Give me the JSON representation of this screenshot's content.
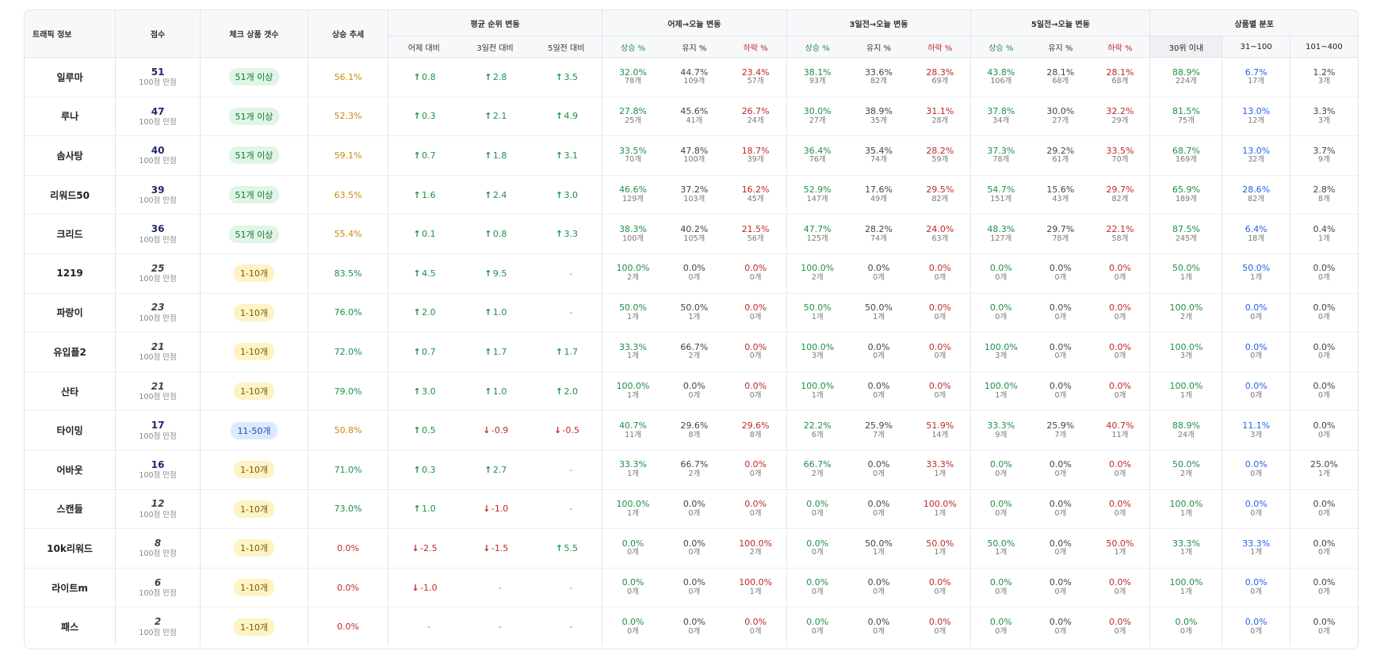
{
  "headers": {
    "traffic": "트래픽 정보",
    "score": "점수",
    "check_count": "체크 상품 갯수",
    "trend": "상승 추세",
    "avg_rank": "평균 순위 변동",
    "yesterday": "어제→오늘 변동",
    "three_day": "3일전→오늘 변동",
    "five_day": "5일전→오늘 변동",
    "distribution": "상품별 분포",
    "vs_yesterday": "어제 대비",
    "vs_3day": "3일전 대비",
    "vs_5day": "5일전 대비",
    "up_pct": "상승 %",
    "keep_pct": "유지 %",
    "down_pct": "하락 %",
    "dist_30": "30위 이내",
    "dist_31_100": "31~100",
    "dist_101_400": "101~400"
  },
  "rows": [
    {
      "name": "일루마",
      "score": "51",
      "score_sub": "100점 만점",
      "score_style": "hi",
      "badge": "51개 이상",
      "badge_style": "green",
      "trend": "56.1%",
      "trend_color": "orange",
      "rank": [
        {
          "arrow": "↑",
          "value": "0.8",
          "dir": "up"
        },
        {
          "arrow": "↑",
          "value": "2.8",
          "dir": "up"
        },
        {
          "arrow": "↑",
          "value": "3.5",
          "dir": "up"
        }
      ],
      "changes": [
        [
          "32.0%",
          "78개"
        ],
        [
          "44.7%",
          "109개"
        ],
        [
          "23.4%",
          "57개"
        ],
        [
          "38.1%",
          "93개"
        ],
        [
          "33.6%",
          "82개"
        ],
        [
          "28.3%",
          "69개"
        ],
        [
          "43.8%",
          "106개"
        ],
        [
          "28.1%",
          "68개"
        ],
        [
          "28.1%",
          "68개"
        ]
      ],
      "dist": [
        [
          "88.9%",
          "224개"
        ],
        [
          "6.7%",
          "17개"
        ],
        [
          "1.2%",
          "3개"
        ]
      ]
    },
    {
      "name": "루나",
      "score": "47",
      "score_sub": "100점 만점",
      "score_style": "hi",
      "badge": "51개 이상",
      "badge_style": "green",
      "trend": "52.3%",
      "trend_color": "orange",
      "rank": [
        {
          "arrow": "↑",
          "value": "0.3",
          "dir": "up"
        },
        {
          "arrow": "↑",
          "value": "2.1",
          "dir": "up"
        },
        {
          "arrow": "↑",
          "value": "4.9",
          "dir": "up"
        }
      ],
      "changes": [
        [
          "27.8%",
          "25개"
        ],
        [
          "45.6%",
          "41개"
        ],
        [
          "26.7%",
          "24개"
        ],
        [
          "30.0%",
          "27개"
        ],
        [
          "38.9%",
          "35개"
        ],
        [
          "31.1%",
          "28개"
        ],
        [
          "37.8%",
          "34개"
        ],
        [
          "30.0%",
          "27개"
        ],
        [
          "32.2%",
          "29개"
        ]
      ],
      "dist": [
        [
          "81.5%",
          "75개"
        ],
        [
          "13.0%",
          "12개"
        ],
        [
          "3.3%",
          "3개"
        ]
      ]
    },
    {
      "name": "솜사탕",
      "score": "40",
      "score_sub": "100점 만점",
      "score_style": "hi",
      "badge": "51개 이상",
      "badge_style": "green",
      "trend": "59.1%",
      "trend_color": "orange",
      "rank": [
        {
          "arrow": "↑",
          "value": "0.7",
          "dir": "up"
        },
        {
          "arrow": "↑",
          "value": "1.8",
          "dir": "up"
        },
        {
          "arrow": "↑",
          "value": "3.1",
          "dir": "up"
        }
      ],
      "changes": [
        [
          "33.5%",
          "70개"
        ],
        [
          "47.8%",
          "100개"
        ],
        [
          "18.7%",
          "39개"
        ],
        [
          "36.4%",
          "76개"
        ],
        [
          "35.4%",
          "74개"
        ],
        [
          "28.2%",
          "59개"
        ],
        [
          "37.3%",
          "78개"
        ],
        [
          "29.2%",
          "61개"
        ],
        [
          "33.5%",
          "70개"
        ]
      ],
      "dist": [
        [
          "68.7%",
          "169개"
        ],
        [
          "13.0%",
          "32개"
        ],
        [
          "3.7%",
          "9개"
        ]
      ]
    },
    {
      "name": "리워드50",
      "score": "39",
      "score_sub": "100점 만점",
      "score_style": "hi",
      "badge": "51개 이상",
      "badge_style": "green",
      "trend": "63.5%",
      "trend_color": "orange",
      "rank": [
        {
          "arrow": "↑",
          "value": "1.6",
          "dir": "up"
        },
        {
          "arrow": "↑",
          "value": "2.4",
          "dir": "up"
        },
        {
          "arrow": "↑",
          "value": "3.0",
          "dir": "up"
        }
      ],
      "changes": [
        [
          "46.6%",
          "129개"
        ],
        [
          "37.2%",
          "103개"
        ],
        [
          "16.2%",
          "45개"
        ],
        [
          "52.9%",
          "147개"
        ],
        [
          "17.6%",
          "49개"
        ],
        [
          "29.5%",
          "82개"
        ],
        [
          "54.7%",
          "151개"
        ],
        [
          "15.6%",
          "43개"
        ],
        [
          "29.7%",
          "82개"
        ]
      ],
      "dist": [
        [
          "65.9%",
          "189개"
        ],
        [
          "28.6%",
          "82개"
        ],
        [
          "2.8%",
          "8개"
        ]
      ]
    },
    {
      "name": "크리드",
      "score": "36",
      "score_sub": "100점 만점",
      "score_style": "hi",
      "badge": "51개 이상",
      "badge_style": "green",
      "trend": "55.4%",
      "trend_color": "orange",
      "rank": [
        {
          "arrow": "↑",
          "value": "0.1",
          "dir": "up"
        },
        {
          "arrow": "↑",
          "value": "0.8",
          "dir": "up"
        },
        {
          "arrow": "↑",
          "value": "3.3",
          "dir": "up"
        }
      ],
      "changes": [
        [
          "38.3%",
          "100개"
        ],
        [
          "40.2%",
          "105개"
        ],
        [
          "21.5%",
          "56개"
        ],
        [
          "47.7%",
          "125개"
        ],
        [
          "28.2%",
          "74개"
        ],
        [
          "24.0%",
          "63개"
        ],
        [
          "48.3%",
          "127개"
        ],
        [
          "29.7%",
          "78개"
        ],
        [
          "22.1%",
          "58개"
        ]
      ],
      "dist": [
        [
          "87.5%",
          "245개"
        ],
        [
          "6.4%",
          "18개"
        ],
        [
          "0.4%",
          "1개"
        ]
      ]
    },
    {
      "name": "1219",
      "score": "25",
      "score_sub": "100점 만점",
      "score_style": "lo",
      "badge": "1-10개",
      "badge_style": "yellow",
      "trend": "83.5%",
      "trend_color": "green",
      "rank": [
        {
          "arrow": "↑",
          "value": "4.5",
          "dir": "up"
        },
        {
          "arrow": "↑",
          "value": "9.5",
          "dir": "up"
        },
        {
          "arrow": "",
          "value": "-",
          "dir": "none"
        }
      ],
      "changes": [
        [
          "100.0%",
          "2개"
        ],
        [
          "0.0%",
          "0개"
        ],
        [
          "0.0%",
          "0개"
        ],
        [
          "100.0%",
          "2개"
        ],
        [
          "0.0%",
          "0개"
        ],
        [
          "0.0%",
          "0개"
        ],
        [
          "0.0%",
          "0개"
        ],
        [
          "0.0%",
          "0개"
        ],
        [
          "0.0%",
          "0개"
        ]
      ],
      "dist": [
        [
          "50.0%",
          "1개"
        ],
        [
          "50.0%",
          "1개"
        ],
        [
          "0.0%",
          "0개"
        ]
      ]
    },
    {
      "name": "파랑이",
      "score": "23",
      "score_sub": "100점 만점",
      "score_style": "lo",
      "badge": "1-10개",
      "badge_style": "yellow",
      "trend": "76.0%",
      "trend_color": "green",
      "rank": [
        {
          "arrow": "↑",
          "value": "2.0",
          "dir": "up"
        },
        {
          "arrow": "↑",
          "value": "1.0",
          "dir": "up"
        },
        {
          "arrow": "",
          "value": "-",
          "dir": "none"
        }
      ],
      "changes": [
        [
          "50.0%",
          "1개"
        ],
        [
          "50.0%",
          "1개"
        ],
        [
          "0.0%",
          "0개"
        ],
        [
          "50.0%",
          "1개"
        ],
        [
          "50.0%",
          "1개"
        ],
        [
          "0.0%",
          "0개"
        ],
        [
          "0.0%",
          "0개"
        ],
        [
          "0.0%",
          "0개"
        ],
        [
          "0.0%",
          "0개"
        ]
      ],
      "dist": [
        [
          "100.0%",
          "2개"
        ],
        [
          "0.0%",
          "0개"
        ],
        [
          "0.0%",
          "0개"
        ]
      ]
    },
    {
      "name": "유입플2",
      "score": "21",
      "score_sub": "100점 만점",
      "score_style": "lo",
      "badge": "1-10개",
      "badge_style": "yellow",
      "trend": "72.0%",
      "trend_color": "green",
      "rank": [
        {
          "arrow": "↑",
          "value": "0.7",
          "dir": "up"
        },
        {
          "arrow": "↑",
          "value": "1.7",
          "dir": "up"
        },
        {
          "arrow": "↑",
          "value": "1.7",
          "dir": "up"
        }
      ],
      "changes": [
        [
          "33.3%",
          "1개"
        ],
        [
          "66.7%",
          "2개"
        ],
        [
          "0.0%",
          "0개"
        ],
        [
          "100.0%",
          "3개"
        ],
        [
          "0.0%",
          "0개"
        ],
        [
          "0.0%",
          "0개"
        ],
        [
          "100.0%",
          "3개"
        ],
        [
          "0.0%",
          "0개"
        ],
        [
          "0.0%",
          "0개"
        ]
      ],
      "dist": [
        [
          "100.0%",
          "3개"
        ],
        [
          "0.0%",
          "0개"
        ],
        [
          "0.0%",
          "0개"
        ]
      ]
    },
    {
      "name": "산타",
      "score": "21",
      "score_sub": "100점 만점",
      "score_style": "lo",
      "badge": "1-10개",
      "badge_style": "yellow",
      "trend": "79.0%",
      "trend_color": "green",
      "rank": [
        {
          "arrow": "↑",
          "value": "3.0",
          "dir": "up"
        },
        {
          "arrow": "↑",
          "value": "1.0",
          "dir": "up"
        },
        {
          "arrow": "↑",
          "value": "2.0",
          "dir": "up"
        }
      ],
      "changes": [
        [
          "100.0%",
          "1개"
        ],
        [
          "0.0%",
          "0개"
        ],
        [
          "0.0%",
          "0개"
        ],
        [
          "100.0%",
          "1개"
        ],
        [
          "0.0%",
          "0개"
        ],
        [
          "0.0%",
          "0개"
        ],
        [
          "100.0%",
          "1개"
        ],
        [
          "0.0%",
          "0개"
        ],
        [
          "0.0%",
          "0개"
        ]
      ],
      "dist": [
        [
          "100.0%",
          "1개"
        ],
        [
          "0.0%",
          "0개"
        ],
        [
          "0.0%",
          "0개"
        ]
      ]
    },
    {
      "name": "타이밍",
      "score": "17",
      "score_sub": "100점 만점",
      "score_style": "hi",
      "badge": "11-50개",
      "badge_style": "blue",
      "trend": "50.8%",
      "trend_color": "orange",
      "rank": [
        {
          "arrow": "↑",
          "value": "0.5",
          "dir": "up"
        },
        {
          "arrow": "↓",
          "value": "-0.9",
          "dir": "down"
        },
        {
          "arrow": "↓",
          "value": "-0.5",
          "dir": "down"
        }
      ],
      "changes": [
        [
          "40.7%",
          "11개"
        ],
        [
          "29.6%",
          "8개"
        ],
        [
          "29.6%",
          "8개"
        ],
        [
          "22.2%",
          "6개"
        ],
        [
          "25.9%",
          "7개"
        ],
        [
          "51.9%",
          "14개"
        ],
        [
          "33.3%",
          "9개"
        ],
        [
          "25.9%",
          "7개"
        ],
        [
          "40.7%",
          "11개"
        ]
      ],
      "dist": [
        [
          "88.9%",
          "24개"
        ],
        [
          "11.1%",
          "3개"
        ],
        [
          "0.0%",
          "0개"
        ]
      ]
    },
    {
      "name": "어바웃",
      "score": "16",
      "score_sub": "100점 만점",
      "score_style": "hi",
      "badge": "1-10개",
      "badge_style": "yellow",
      "trend": "71.0%",
      "trend_color": "green",
      "rank": [
        {
          "arrow": "↑",
          "value": "0.3",
          "dir": "up"
        },
        {
          "arrow": "↑",
          "value": "2.7",
          "dir": "up"
        },
        {
          "arrow": "",
          "value": "-",
          "dir": "none"
        }
      ],
      "changes": [
        [
          "33.3%",
          "1개"
        ],
        [
          "66.7%",
          "2개"
        ],
        [
          "0.0%",
          "0개"
        ],
        [
          "66.7%",
          "2개"
        ],
        [
          "0.0%",
          "0개"
        ],
        [
          "33.3%",
          "1개"
        ],
        [
          "0.0%",
          "0개"
        ],
        [
          "0.0%",
          "0개"
        ],
        [
          "0.0%",
          "0개"
        ]
      ],
      "dist": [
        [
          "50.0%",
          "2개"
        ],
        [
          "0.0%",
          "0개"
        ],
        [
          "25.0%",
          "1개"
        ]
      ]
    },
    {
      "name": "스캔들",
      "score": "12",
      "score_sub": "100점 만점",
      "score_style": "lo",
      "badge": "1-10개",
      "badge_style": "yellow",
      "trend": "73.0%",
      "trend_color": "green",
      "rank": [
        {
          "arrow": "↑",
          "value": "1.0",
          "dir": "up"
        },
        {
          "arrow": "↓",
          "value": "-1.0",
          "dir": "down"
        },
        {
          "arrow": "",
          "value": "-",
          "dir": "none"
        }
      ],
      "changes": [
        [
          "100.0%",
          "1개"
        ],
        [
          "0.0%",
          "0개"
        ],
        [
          "0.0%",
          "0개"
        ],
        [
          "0.0%",
          "0개"
        ],
        [
          "0.0%",
          "0개"
        ],
        [
          "100.0%",
          "1개"
        ],
        [
          "0.0%",
          "0개"
        ],
        [
          "0.0%",
          "0개"
        ],
        [
          "0.0%",
          "0개"
        ]
      ],
      "dist": [
        [
          "100.0%",
          "1개"
        ],
        [
          "0.0%",
          "0개"
        ],
        [
          "0.0%",
          "0개"
        ]
      ]
    },
    {
      "name": "10k리워드",
      "score": "8",
      "score_sub": "100점 만점",
      "score_style": "lo",
      "badge": "1-10개",
      "badge_style": "yellow",
      "trend": "0.0%",
      "trend_color": "red",
      "rank": [
        {
          "arrow": "↓",
          "value": "-2.5",
          "dir": "down"
        },
        {
          "arrow": "↓",
          "value": "-1.5",
          "dir": "down"
        },
        {
          "arrow": "↑",
          "value": "5.5",
          "dir": "up"
        }
      ],
      "changes": [
        [
          "0.0%",
          "0개"
        ],
        [
          "0.0%",
          "0개"
        ],
        [
          "100.0%",
          "2개"
        ],
        [
          "0.0%",
          "0개"
        ],
        [
          "50.0%",
          "1개"
        ],
        [
          "50.0%",
          "1개"
        ],
        [
          "50.0%",
          "1개"
        ],
        [
          "0.0%",
          "0개"
        ],
        [
          "50.0%",
          "1개"
        ]
      ],
      "dist": [
        [
          "33.3%",
          "1개"
        ],
        [
          "33.3%",
          "1개"
        ],
        [
          "0.0%",
          "0개"
        ]
      ]
    },
    {
      "name": "라이트m",
      "score": "6",
      "score_sub": "100점 만점",
      "score_style": "lo",
      "badge": "1-10개",
      "badge_style": "yellow",
      "trend": "0.0%",
      "trend_color": "red",
      "rank": [
        {
          "arrow": "↓",
          "value": "-1.0",
          "dir": "down"
        },
        {
          "arrow": "",
          "value": "-",
          "dir": "none"
        },
        {
          "arrow": "",
          "value": "-",
          "dir": "none"
        }
      ],
      "changes": [
        [
          "0.0%",
          "0개"
        ],
        [
          "0.0%",
          "0개"
        ],
        [
          "100.0%",
          "1개"
        ],
        [
          "0.0%",
          "0개"
        ],
        [
          "0.0%",
          "0개"
        ],
        [
          "0.0%",
          "0개"
        ],
        [
          "0.0%",
          "0개"
        ],
        [
          "0.0%",
          "0개"
        ],
        [
          "0.0%",
          "0개"
        ]
      ],
      "dist": [
        [
          "100.0%",
          "1개"
        ],
        [
          "0.0%",
          "0개"
        ],
        [
          "0.0%",
          "0개"
        ]
      ]
    },
    {
      "name": "패스",
      "score": "2",
      "score_sub": "100점 만점",
      "score_style": "lo",
      "badge": "1-10개",
      "badge_style": "yellow",
      "trend": "0.0%",
      "trend_color": "red",
      "rank": [
        {
          "arrow": "",
          "value": "-",
          "dir": "none"
        },
        {
          "arrow": "",
          "value": "-",
          "dir": "none"
        },
        {
          "arrow": "",
          "value": "-",
          "dir": "none"
        }
      ],
      "changes": [
        [
          "0.0%",
          "0개"
        ],
        [
          "0.0%",
          "0개"
        ],
        [
          "0.0%",
          "0개"
        ],
        [
          "0.0%",
          "0개"
        ],
        [
          "0.0%",
          "0개"
        ],
        [
          "0.0%",
          "0개"
        ],
        [
          "0.0%",
          "0개"
        ],
        [
          "0.0%",
          "0개"
        ],
        [
          "0.0%",
          "0개"
        ]
      ],
      "dist": [
        [
          "0.0%",
          "0개"
        ],
        [
          "0.0%",
          "0개"
        ],
        [
          "0.0%",
          "0개"
        ]
      ]
    }
  ],
  "colors": {
    "up": "#1e8f4a",
    "down": "#c02828",
    "accent_orange": "#c98a0e",
    "blue": "#2563eb"
  }
}
